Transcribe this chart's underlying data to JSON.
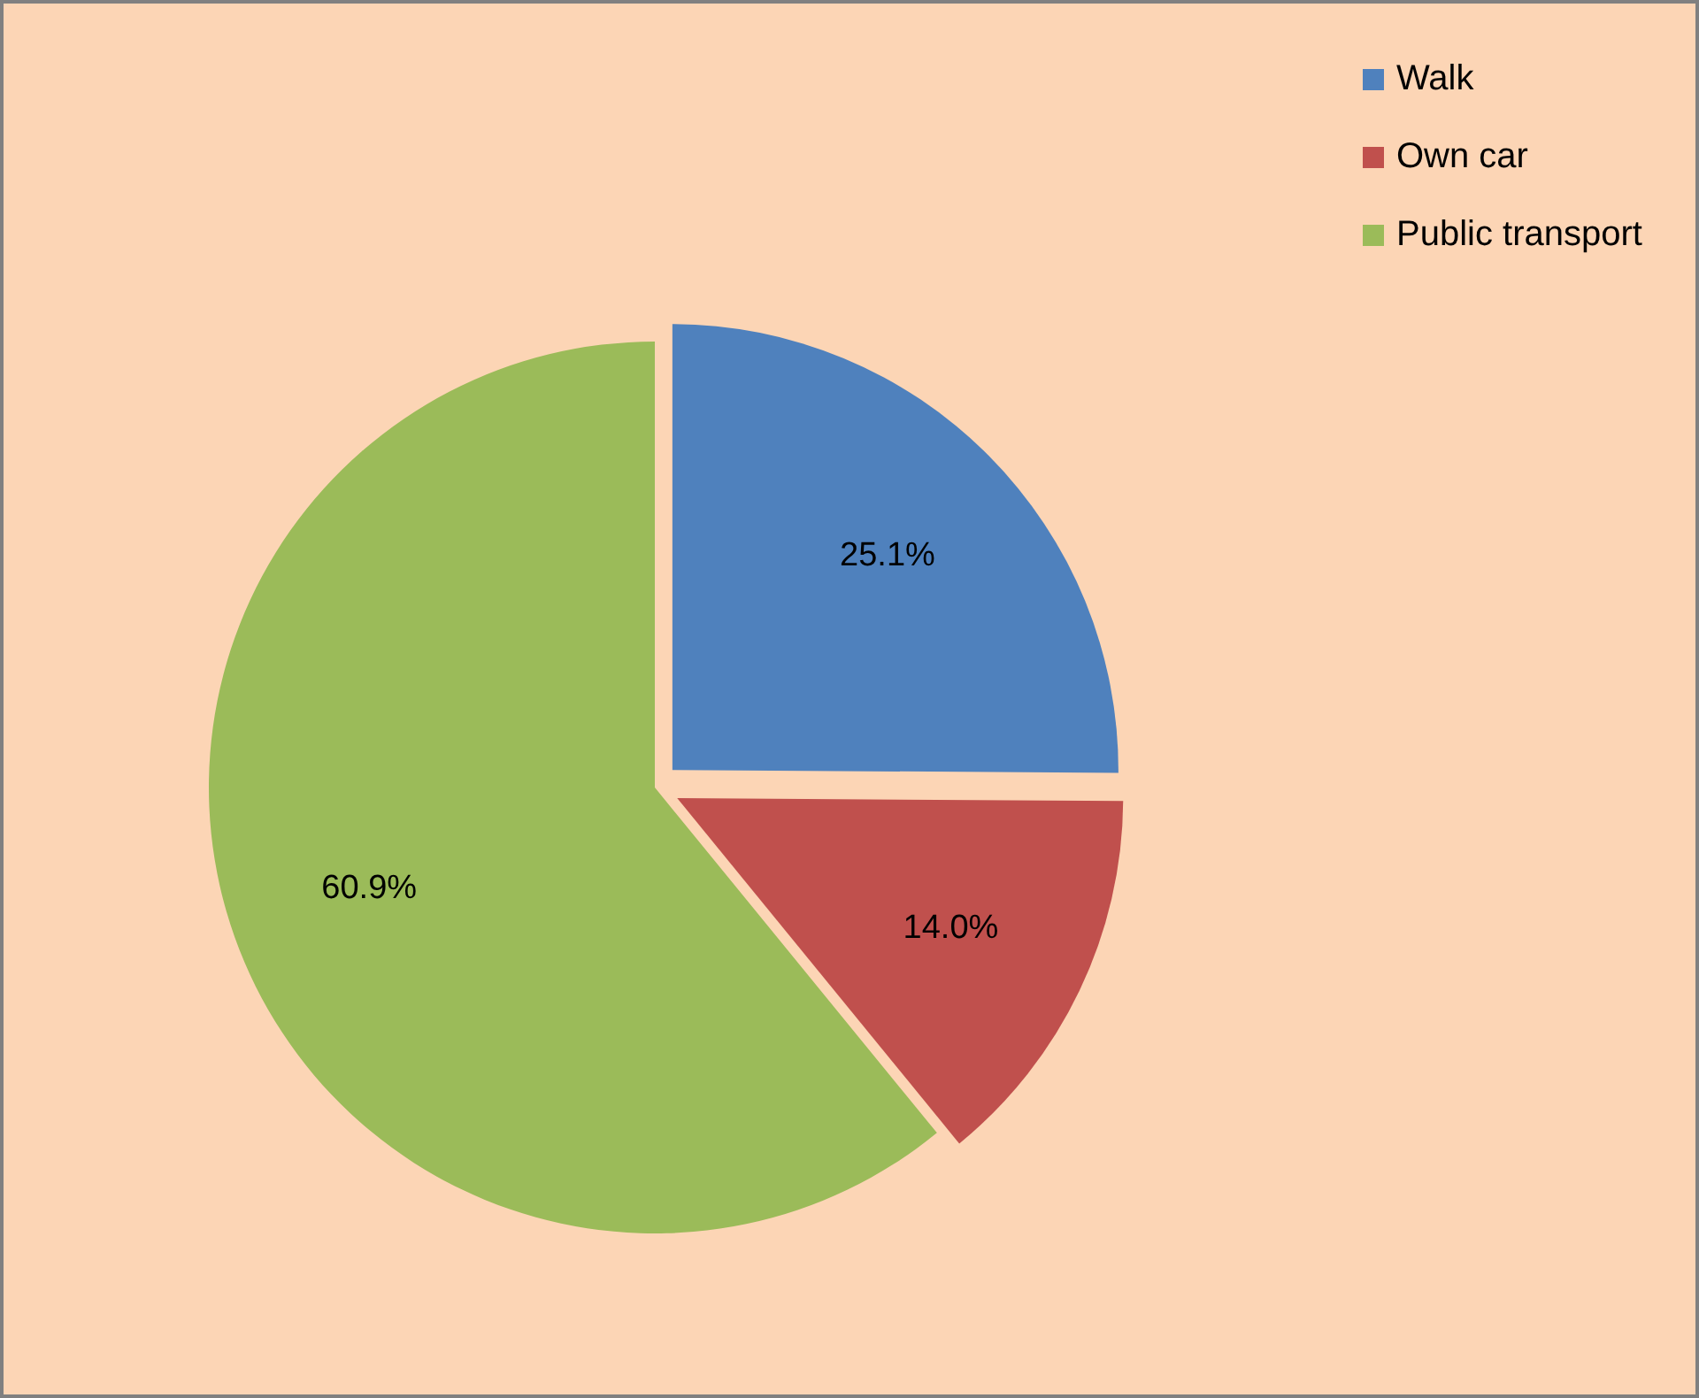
{
  "chart_data": {
    "type": "pie",
    "categories": [
      "Walk",
      "Own car",
      "Public transport"
    ],
    "values": [
      25.1,
      14.0,
      60.9
    ],
    "colors": [
      "#4f81bd",
      "#c0504d",
      "#9bbb59"
    ],
    "value_labels": [
      "25.1%",
      "14.0%",
      "60.9%"
    ],
    "legend": "top right"
  }
}
